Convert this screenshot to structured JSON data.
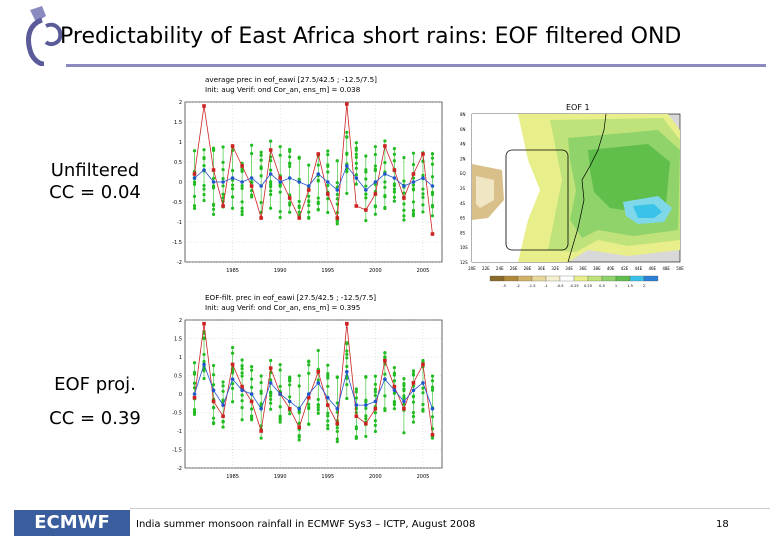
{
  "slide": {
    "title": "Predictability of East Africa short rains: EOF filtered OND",
    "page_number": "18",
    "footer_text": "India summer monsoon rainfall in ECMWF Sys3 – ICTP, August 2008",
    "footer_logo": "ECMWF"
  },
  "labels": {
    "unfiltered_line1": "Unfiltered",
    "unfiltered_line2": "CC = 0.04",
    "eof_line1": "EOF proj.",
    "eof_line2": "CC = 0.39"
  },
  "colors": {
    "title_rule": "#8a8ac0",
    "ensemble_member": "#22bb22",
    "obs": "#cc2222",
    "ens_mean": "#2255cc",
    "logo_bg": "#3a5d9e"
  },
  "chart_data": [
    {
      "type": "line",
      "title": "average prec in eof_eawi [27.5/42.5 ; -12.5/7.5]",
      "subtitle": "Init: aug  Verif: ond  Cor_an, ens_m] = 0.038",
      "x_ticks": [
        "1985",
        "1990",
        "1995",
        "2000",
        "2005"
      ],
      "y_ticks": [
        "2",
        "1.5",
        "1",
        "0.5",
        "0",
        "-0.5",
        "-1",
        "-1.5",
        "-2"
      ],
      "ylim": [
        -2,
        2
      ],
      "x": [
        1981,
        1982,
        1983,
        1984,
        1985,
        1986,
        1987,
        1988,
        1989,
        1990,
        1991,
        1992,
        1993,
        1994,
        1995,
        1996,
        1997,
        1998,
        1999,
        2000,
        2001,
        2002,
        2003,
        2004,
        2005,
        2006
      ],
      "series": [
        {
          "role": "obs",
          "values": [
            0.2,
            1.9,
            0.3,
            -0.6,
            0.9,
            0.4,
            -0.1,
            -0.9,
            0.8,
            0.1,
            -0.4,
            -0.9,
            -0.2,
            0.7,
            -0.3,
            -0.9,
            1.95,
            -0.6,
            -0.7,
            -0.3,
            0.9,
            0.3,
            -0.4,
            0.2,
            0.7,
            -1.3
          ]
        },
        {
          "role": "ens_mean",
          "values": [
            0.1,
            0.3,
            0.0,
            0.0,
            0.1,
            0.0,
            0.1,
            -0.1,
            0.2,
            0.0,
            0.1,
            0.0,
            -0.1,
            0.2,
            0.0,
            -0.2,
            0.4,
            0.1,
            -0.2,
            0.0,
            0.2,
            0.1,
            -0.1,
            0.0,
            0.1,
            -0.1
          ]
        }
      ]
    },
    {
      "type": "line",
      "title": "EOF-filt. prec in eof_eawi [27.5/42.5 ; -12.5/7.5]",
      "subtitle": "Init: aug  Verif: ond  Cor_an, ens_m] = 0.395",
      "x_ticks": [
        "1985",
        "1990",
        "1995",
        "2000",
        "2005"
      ],
      "y_ticks": [
        "2",
        "1.5",
        "1",
        "0.5",
        "0",
        "-0.5",
        "-1",
        "-1.5",
        "-2"
      ],
      "ylim": [
        -2,
        2
      ],
      "x": [
        1981,
        1982,
        1983,
        1984,
        1985,
        1986,
        1987,
        1988,
        1989,
        1990,
        1991,
        1992,
        1993,
        1994,
        1995,
        1996,
        1997,
        1998,
        1999,
        2000,
        2001,
        2002,
        2003,
        2004,
        2005,
        2006
      ],
      "series": [
        {
          "role": "obs",
          "values": [
            -0.1,
            1.9,
            -0.2,
            -0.6,
            0.8,
            0.2,
            -0.2,
            -1.0,
            0.7,
            0.0,
            -0.4,
            -0.9,
            -0.1,
            0.6,
            -0.3,
            -0.8,
            1.9,
            -0.6,
            -0.8,
            -0.4,
            0.9,
            0.2,
            -0.4,
            0.3,
            0.8,
            -1.1
          ]
        },
        {
          "role": "ens_mean",
          "values": [
            0.0,
            0.8,
            0.1,
            -0.3,
            0.4,
            0.1,
            0.0,
            -0.4,
            0.3,
            0.0,
            -0.2,
            -0.4,
            0.0,
            0.3,
            -0.1,
            -0.4,
            0.6,
            -0.3,
            -0.3,
            -0.2,
            0.4,
            0.1,
            -0.2,
            0.1,
            0.3,
            -0.4
          ]
        }
      ]
    },
    {
      "type": "heatmap",
      "title": "EOF 1",
      "y_ticks": [
        "8N",
        "6N",
        "4N",
        "2N",
        "EQ",
        "2S",
        "4S",
        "6S",
        "8S",
        "10S",
        "12S"
      ],
      "x_ticks": [
        "20E",
        "22E",
        "24E",
        "26E",
        "28E",
        "30E",
        "32E",
        "34E",
        "36E",
        "38E",
        "40E",
        "42E",
        "44E",
        "46E",
        "48E",
        "50E"
      ],
      "colorbar_labels": [
        "-3",
        "-2",
        "-1.5",
        "-1",
        "-0.5",
        "-0.25",
        "0.25",
        "0.5",
        "1",
        "1.5",
        "2"
      ]
    }
  ]
}
